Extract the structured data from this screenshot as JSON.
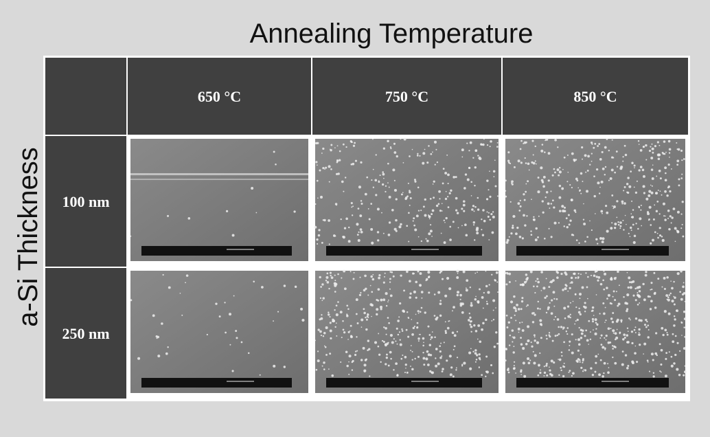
{
  "header": {
    "title": "Annealing Temperature",
    "row_axis_label": "a-Si Thickness"
  },
  "table": {
    "columns": [
      "650 °C",
      "750 °C",
      "850 °C"
    ],
    "rows": [
      "100 nm",
      "250 nm"
    ]
  }
}
